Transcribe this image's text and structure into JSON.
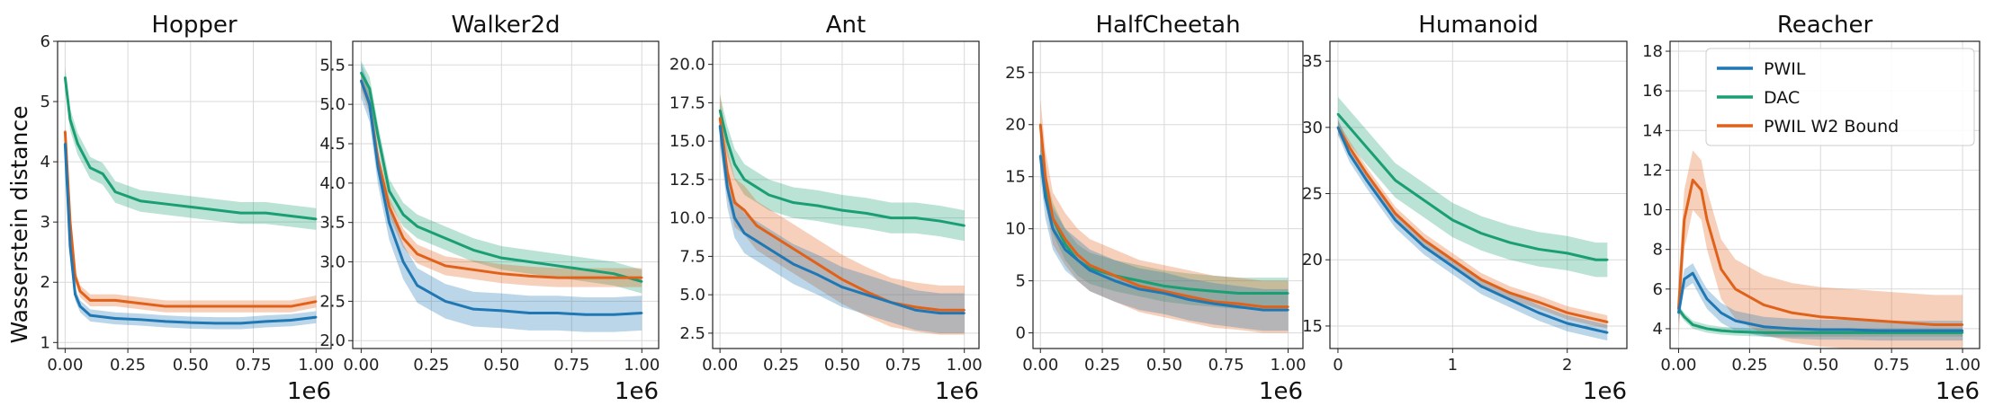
{
  "figure": {
    "ylabel": "Wasserstein distance"
  },
  "colors": {
    "PWIL": "#1f77b4",
    "DAC": "#1a9e74",
    "PWIL W2 Bound": "#e0621a"
  },
  "legend": {
    "location": "upper right",
    "panel": "Reacher",
    "entries": [
      "PWIL",
      "DAC",
      "PWIL W2 Bound"
    ]
  },
  "chart_data": [
    {
      "type": "line",
      "title": "Hopper",
      "xlim": [
        -0.03,
        1.06
      ],
      "ylim": [
        0.9,
        6.0
      ],
      "xticks": [
        0,
        0.25,
        0.5,
        0.75,
        1.0
      ],
      "xticklabels": [
        "0.00",
        "0.25",
        "0.50",
        "0.75",
        "1.00"
      ],
      "yticks": [
        1,
        2,
        3,
        4,
        5,
        6
      ],
      "yticklabels": [
        "1",
        "2",
        "3",
        "4",
        "5",
        "6"
      ],
      "xscale_label": "1e6",
      "series": [
        {
          "name": "DAC",
          "x": [
            0,
            0.02,
            0.05,
            0.1,
            0.15,
            0.2,
            0.3,
            0.4,
            0.5,
            0.6,
            0.7,
            0.8,
            0.9,
            1.0
          ],
          "y": [
            5.4,
            4.7,
            4.3,
            3.9,
            3.8,
            3.5,
            3.35,
            3.3,
            3.25,
            3.2,
            3.15,
            3.15,
            3.1,
            3.05
          ],
          "band": 0.18
        },
        {
          "name": "PWIL W2 Bound",
          "x": [
            0,
            0.02,
            0.04,
            0.06,
            0.1,
            0.2,
            0.3,
            0.4,
            0.5,
            0.6,
            0.7,
            0.8,
            0.9,
            1.0
          ],
          "y": [
            4.5,
            3.0,
            2.1,
            1.85,
            1.7,
            1.7,
            1.65,
            1.6,
            1.6,
            1.6,
            1.6,
            1.6,
            1.6,
            1.68
          ],
          "band": 0.1
        },
        {
          "name": "PWIL",
          "x": [
            0,
            0.02,
            0.04,
            0.06,
            0.1,
            0.2,
            0.3,
            0.4,
            0.5,
            0.6,
            0.7,
            0.8,
            0.9,
            1.0
          ],
          "y": [
            4.3,
            2.6,
            1.8,
            1.6,
            1.45,
            1.4,
            1.38,
            1.35,
            1.33,
            1.32,
            1.32,
            1.35,
            1.37,
            1.42
          ],
          "band": 0.1
        }
      ]
    },
    {
      "type": "line",
      "title": "Walker2d",
      "xlim": [
        -0.03,
        1.06
      ],
      "ylim": [
        1.9,
        5.8
      ],
      "xticks": [
        0,
        0.25,
        0.5,
        0.75,
        1.0
      ],
      "xticklabels": [
        "0.00",
        "0.25",
        "0.50",
        "0.75",
        "1.00"
      ],
      "yticks": [
        2.0,
        2.5,
        3.0,
        3.5,
        4.0,
        4.5,
        5.0,
        5.5
      ],
      "yticklabels": [
        "2.0",
        "2.5",
        "3.0",
        "3.5",
        "4.0",
        "4.5",
        "5.0",
        "5.5"
      ],
      "xscale_label": "1e6",
      "series": [
        {
          "name": "DAC",
          "x": [
            0,
            0.03,
            0.06,
            0.1,
            0.15,
            0.2,
            0.3,
            0.4,
            0.5,
            0.6,
            0.7,
            0.8,
            0.9,
            1.0
          ],
          "y": [
            5.4,
            5.2,
            4.6,
            3.9,
            3.6,
            3.45,
            3.3,
            3.15,
            3.05,
            3.0,
            2.95,
            2.9,
            2.85,
            2.75
          ],
          "band": 0.15
        },
        {
          "name": "PWIL W2 Bound",
          "x": [
            0,
            0.03,
            0.06,
            0.1,
            0.15,
            0.2,
            0.3,
            0.4,
            0.5,
            0.6,
            0.7,
            0.8,
            0.9,
            1.0
          ],
          "y": [
            5.3,
            5.0,
            4.3,
            3.7,
            3.3,
            3.1,
            2.95,
            2.9,
            2.85,
            2.82,
            2.8,
            2.8,
            2.8,
            2.8
          ],
          "band": 0.12
        },
        {
          "name": "PWIL",
          "x": [
            0,
            0.03,
            0.06,
            0.1,
            0.15,
            0.2,
            0.3,
            0.4,
            0.5,
            0.6,
            0.7,
            0.8,
            0.9,
            1.0
          ],
          "y": [
            5.3,
            5.0,
            4.2,
            3.5,
            3.0,
            2.7,
            2.5,
            2.4,
            2.38,
            2.35,
            2.35,
            2.33,
            2.33,
            2.35
          ],
          "band": 0.22
        }
      ]
    },
    {
      "type": "line",
      "title": "Ant",
      "xlim": [
        -0.03,
        1.06
      ],
      "ylim": [
        1.5,
        21.5
      ],
      "xticks": [
        0,
        0.25,
        0.5,
        0.75,
        1.0
      ],
      "xticklabels": [
        "0.00",
        "0.25",
        "0.50",
        "0.75",
        "1.00"
      ],
      "yticks": [
        2.5,
        5.0,
        7.5,
        10.0,
        12.5,
        15.0,
        17.5,
        20.0
      ],
      "yticklabels": [
        "2.5",
        "5.0",
        "7.5",
        "10.0",
        "12.5",
        "15.0",
        "17.5",
        "20.0"
      ],
      "xscale_label": "1e6",
      "series": [
        {
          "name": "DAC",
          "x": [
            0,
            0.03,
            0.06,
            0.1,
            0.15,
            0.2,
            0.3,
            0.4,
            0.5,
            0.6,
            0.7,
            0.8,
            0.9,
            1.0
          ],
          "y": [
            17.0,
            15.0,
            13.5,
            12.5,
            12.0,
            11.5,
            11.0,
            10.8,
            10.5,
            10.3,
            10.0,
            10.0,
            9.8,
            9.5
          ],
          "band": 1.0
        },
        {
          "name": "PWIL W2 Bound",
          "x": [
            0,
            0.03,
            0.06,
            0.1,
            0.15,
            0.2,
            0.3,
            0.4,
            0.5,
            0.6,
            0.7,
            0.8,
            0.9,
            1.0
          ],
          "y": [
            16.5,
            13.0,
            11.0,
            10.5,
            9.5,
            9.0,
            8.0,
            7.0,
            6.0,
            5.2,
            4.5,
            4.2,
            4.0,
            4.0
          ],
          "band": 1.6
        },
        {
          "name": "PWIL",
          "x": [
            0,
            0.03,
            0.06,
            0.1,
            0.15,
            0.2,
            0.3,
            0.4,
            0.5,
            0.6,
            0.7,
            0.8,
            0.9,
            1.0
          ],
          "y": [
            16.0,
            12.0,
            10.0,
            9.0,
            8.5,
            8.0,
            7.0,
            6.3,
            5.5,
            5.0,
            4.5,
            4.0,
            3.8,
            3.8
          ],
          "band": 1.3
        }
      ]
    },
    {
      "type": "line",
      "title": "HalfCheetah",
      "xlim": [
        -0.03,
        1.06
      ],
      "ylim": [
        -1.5,
        28.0
      ],
      "xticks": [
        0,
        0.25,
        0.5,
        0.75,
        1.0
      ],
      "xticklabels": [
        "0.00",
        "0.25",
        "0.50",
        "0.75",
        "1.00"
      ],
      "yticks": [
        0,
        5,
        10,
        15,
        20,
        25
      ],
      "yticklabels": [
        "0",
        "5",
        "10",
        "15",
        "20",
        "25"
      ],
      "xscale_label": "1e6",
      "series": [
        {
          "name": "DAC",
          "x": [
            0,
            0.02,
            0.05,
            0.1,
            0.15,
            0.2,
            0.3,
            0.4,
            0.5,
            0.6,
            0.7,
            0.8,
            0.9,
            1.0
          ],
          "y": [
            17.0,
            14.0,
            11.0,
            8.5,
            7.0,
            6.2,
            5.5,
            5.0,
            4.5,
            4.2,
            4.0,
            3.8,
            3.8,
            3.8
          ],
          "band": 1.5
        },
        {
          "name": "PWIL W2 Bound",
          "x": [
            0,
            0.02,
            0.05,
            0.1,
            0.15,
            0.2,
            0.3,
            0.4,
            0.5,
            0.6,
            0.7,
            0.8,
            0.9,
            1.0
          ],
          "y": [
            20.0,
            15.0,
            11.0,
            9.0,
            7.5,
            6.5,
            5.5,
            4.5,
            4.0,
            3.5,
            3.0,
            2.8,
            2.5,
            2.5
          ],
          "band": 2.5
        },
        {
          "name": "PWIL",
          "x": [
            0,
            0.02,
            0.05,
            0.1,
            0.15,
            0.2,
            0.3,
            0.4,
            0.5,
            0.6,
            0.7,
            0.8,
            0.9,
            1.0
          ],
          "y": [
            17.0,
            13.0,
            10.0,
            8.0,
            7.0,
            6.0,
            5.0,
            4.2,
            3.8,
            3.2,
            2.8,
            2.5,
            2.2,
            2.2
          ],
          "band": 2.0
        }
      ]
    },
    {
      "type": "line",
      "title": "Humanoid",
      "xlim": [
        -0.07,
        2.52
      ],
      "ylim": [
        13.3,
        36.5
      ],
      "xticks": [
        0,
        1,
        2
      ],
      "xticklabels": [
        "0",
        "1",
        "2"
      ],
      "yticks": [
        15,
        20,
        25,
        30,
        35
      ],
      "yticklabels": [
        "15",
        "20",
        "25",
        "30",
        "35"
      ],
      "xscale_label": "1e6",
      "series": [
        {
          "name": "DAC",
          "x": [
            0,
            0.1,
            0.25,
            0.5,
            0.75,
            1.0,
            1.25,
            1.5,
            1.75,
            2.0,
            2.25,
            2.35
          ],
          "y": [
            31.0,
            30.0,
            28.5,
            26.0,
            24.5,
            23.0,
            22.0,
            21.3,
            20.8,
            20.5,
            20.0,
            20.0
          ],
          "band": 1.3
        },
        {
          "name": "PWIL W2 Bound",
          "x": [
            0,
            0.1,
            0.25,
            0.5,
            0.75,
            1.0,
            1.25,
            1.5,
            1.75,
            2.0,
            2.25,
            2.35
          ],
          "y": [
            30.0,
            28.5,
            26.5,
            23.5,
            21.5,
            20.0,
            18.5,
            17.5,
            16.8,
            16.0,
            15.5,
            15.3
          ],
          "band": 0.5
        },
        {
          "name": "PWIL",
          "x": [
            0,
            0.1,
            0.25,
            0.5,
            0.75,
            1.0,
            1.25,
            1.5,
            1.75,
            2.0,
            2.25,
            2.35
          ],
          "y": [
            30.0,
            28.0,
            26.0,
            23.0,
            21.0,
            19.5,
            18.0,
            17.0,
            16.0,
            15.2,
            14.7,
            14.5
          ],
          "band": 0.6
        }
      ]
    },
    {
      "type": "line",
      "title": "Reacher",
      "xlim": [
        -0.03,
        1.06
      ],
      "ylim": [
        3.0,
        18.5
      ],
      "xticks": [
        0,
        0.25,
        0.5,
        0.75,
        1.0
      ],
      "xticklabels": [
        "0.00",
        "0.25",
        "0.50",
        "0.75",
        "1.00"
      ],
      "yticks": [
        4,
        6,
        8,
        10,
        12,
        14,
        16,
        18
      ],
      "yticklabels": [
        "4",
        "6",
        "8",
        "10",
        "12",
        "14",
        "16",
        "18"
      ],
      "xscale_label": "1e6",
      "series": [
        {
          "name": "DAC",
          "x": [
            0,
            0.02,
            0.05,
            0.1,
            0.15,
            0.2,
            0.3,
            0.4,
            0.5,
            0.6,
            0.7,
            0.8,
            0.9,
            1.0
          ],
          "y": [
            5.0,
            4.6,
            4.2,
            4.0,
            3.9,
            3.85,
            3.8,
            3.8,
            3.8,
            3.8,
            3.8,
            3.8,
            3.8,
            3.8
          ],
          "band": 0.2
        },
        {
          "name": "PWIL W2 Bound",
          "x": [
            0,
            0.02,
            0.05,
            0.08,
            0.1,
            0.15,
            0.2,
            0.3,
            0.4,
            0.5,
            0.6,
            0.7,
            0.8,
            0.9,
            1.0
          ],
          "y": [
            5.0,
            9.5,
            11.5,
            11.0,
            9.5,
            7.0,
            6.0,
            5.2,
            4.8,
            4.6,
            4.5,
            4.4,
            4.3,
            4.2,
            4.2
          ],
          "band": 1.5
        },
        {
          "name": "PWIL",
          "x": [
            0,
            0.02,
            0.05,
            0.08,
            0.1,
            0.15,
            0.2,
            0.3,
            0.4,
            0.5,
            0.6,
            0.7,
            0.8,
            0.9,
            1.0
          ],
          "y": [
            4.8,
            6.5,
            6.8,
            6.0,
            5.5,
            4.8,
            4.4,
            4.1,
            4.0,
            3.95,
            3.95,
            3.9,
            3.9,
            3.9,
            3.9
          ],
          "band": 0.5
        }
      ]
    }
  ]
}
